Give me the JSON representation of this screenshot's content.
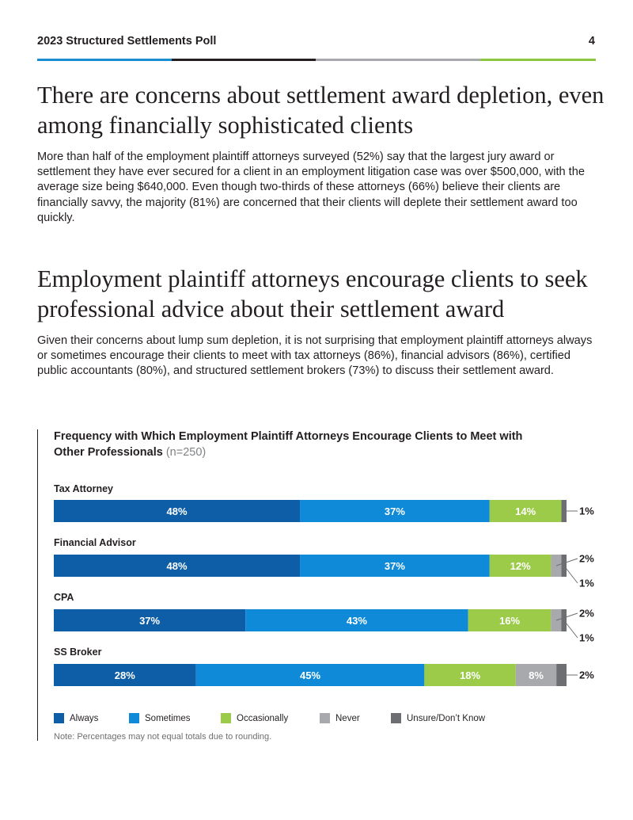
{
  "header": {
    "title": "2023 Structured Settlements Poll",
    "page_number": "4"
  },
  "colors": {
    "rule": [
      "#1b8ed1",
      "#231f20",
      "#a7a9ac",
      "#8dc63f"
    ],
    "always": "#0d5ea6",
    "sometimes": "#0f8ad8",
    "occasionally": "#9ccb4a",
    "never": "#a7a9ac",
    "unsure": "#6d6e71"
  },
  "section1": {
    "heading": "There are concerns about settlement award depletion, even among financially sophisticated clients",
    "body": "More than half of the employment plaintiff attorneys surveyed (52%) say that the largest jury award or settlement they have ever secured for a client in an employment litigation case was over $500,000, with the average size being $640,000. Even though two-thirds of these attorneys (66%) believe their clients are financially savvy, the majority (81%) are concerned that their clients will deplete their settlement award too quickly."
  },
  "section2": {
    "heading": "Employment plaintiff attorneys encourage clients to seek professional advice about their settlement award",
    "body": "Given their concerns about lump sum depletion, it is not surprising that employment plaintiff attorneys always or sometimes encourage their clients to meet with tax attorneys (86%), financial advisors (86%), certified public accountants (80%), and structured settlement brokers (73%) to discuss their settlement award."
  },
  "chart_data": {
    "type": "bar",
    "orientation": "horizontal",
    "stacked": true,
    "title": "Frequency with Which Employment Plaintiff Attorneys Encourage Clients to Meet with Other Professionals",
    "title_note": "(n=250)",
    "categories": [
      "Tax Attorney",
      "Financial Advisor",
      "CPA",
      "SS Broker"
    ],
    "series": [
      {
        "name": "Always",
        "values": [
          48,
          48,
          37,
          28
        ]
      },
      {
        "name": "Sometimes",
        "values": [
          37,
          37,
          43,
          45
        ]
      },
      {
        "name": "Occasionally",
        "values": [
          14,
          12,
          16,
          18
        ]
      },
      {
        "name": "Never",
        "values": [
          0,
          2,
          2,
          8
        ]
      },
      {
        "name": "Unsure/Don’t Know",
        "values": [
          1,
          1,
          1,
          2
        ]
      }
    ],
    "unit": "%",
    "legend_position": "bottom",
    "note": "Note: Percentages may not equal totals due to rounding."
  }
}
